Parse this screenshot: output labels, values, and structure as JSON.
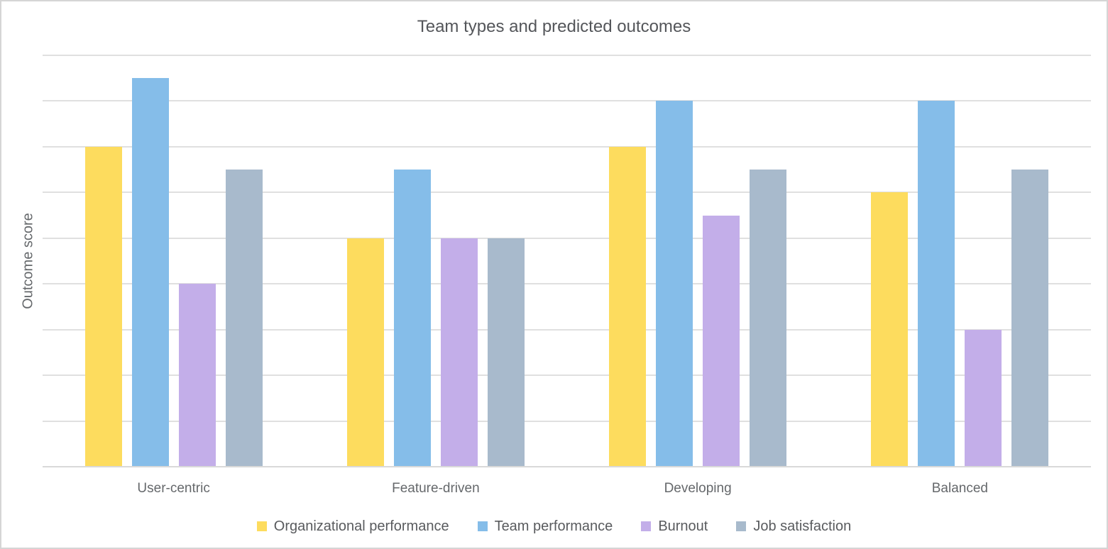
{
  "chart_data": {
    "type": "bar",
    "title": "Team types and predicted outcomes",
    "xlabel": "",
    "ylabel": "Outcome score",
    "categories": [
      "User-centric",
      "Feature-driven",
      "Developing",
      "Balanced"
    ],
    "series": [
      {
        "name": "Organizational performance",
        "color": "#FDDC5E",
        "values": [
          7,
          5,
          7,
          6
        ]
      },
      {
        "name": "Team performance",
        "color": "#85BDE9",
        "values": [
          8.5,
          6.5,
          8,
          8
        ]
      },
      {
        "name": "Burnout",
        "color": "#C3AEE9",
        "values": [
          4,
          5,
          5.5,
          3
        ]
      },
      {
        "name": "Job satisfaction",
        "color": "#A8BACC",
        "values": [
          6.5,
          5,
          6.5,
          6.5
        ]
      }
    ],
    "ylim": [
      0,
      9
    ],
    "gridline_step": 1,
    "grid": true,
    "y_tick_labels_visible": false,
    "legend_position": "bottom",
    "gridline_color": "#e0e0e0",
    "baseline_color": "#d9d9d9",
    "title_color": "#54565a",
    "axis_label_color": "#65686b"
  }
}
